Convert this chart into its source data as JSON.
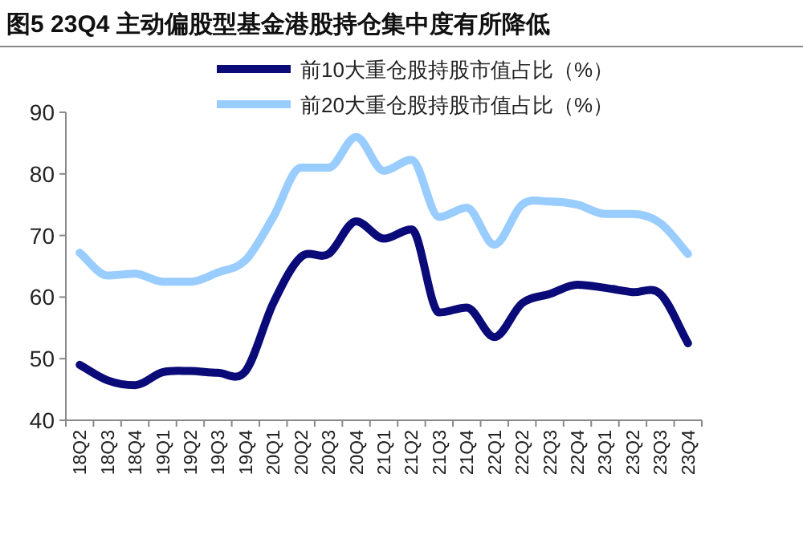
{
  "chart_data": {
    "type": "line",
    "title": "图5  23Q4 主动偏股型基金港股持仓集中度有所降低",
    "categories": [
      "18Q2",
      "18Q3",
      "18Q4",
      "19Q1",
      "19Q2",
      "19Q3",
      "19Q4",
      "20Q1",
      "20Q2",
      "20Q3",
      "20Q4",
      "21Q1",
      "21Q2",
      "21Q3",
      "21Q4",
      "22Q1",
      "22Q2",
      "22Q3",
      "22Q4",
      "23Q1",
      "23Q2",
      "23Q3",
      "23Q4"
    ],
    "series": [
      {
        "name": "前10大重仓股持股市值占比（%）",
        "color": "#0a0a78",
        "values": [
          49,
          46.5,
          45.7,
          47.8,
          48,
          47.7,
          48,
          59,
          66.5,
          67,
          72.3,
          69.5,
          71,
          57.5,
          58.3,
          53.5,
          59,
          60.5,
          62,
          61.5,
          60.8,
          60.5,
          52.5
        ]
      },
      {
        "name": "前20大重仓股持股市值占比（%）",
        "color": "#99ccff",
        "values": [
          67.2,
          63.5,
          63.8,
          62.5,
          62.5,
          64,
          66,
          73,
          81,
          81,
          86,
          80.5,
          82.3,
          73,
          74.5,
          68.5,
          75,
          75.5,
          75,
          73.5,
          73.5,
          72,
          67
        ]
      }
    ],
    "ylim": [
      40,
      90
    ],
    "yticks": [
      40,
      50,
      60,
      70,
      80,
      90
    ],
    "legend": "top",
    "grid": false,
    "marker": "none",
    "line_style": "solid"
  }
}
